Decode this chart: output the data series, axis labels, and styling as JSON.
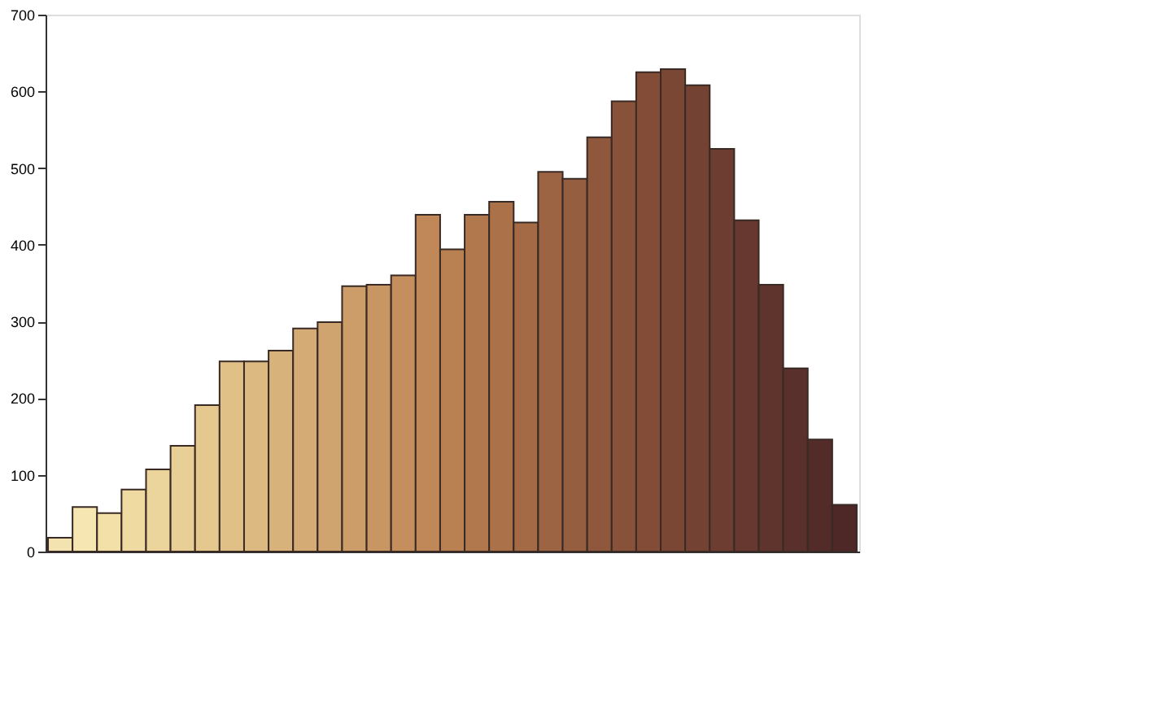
{
  "chart_data": {
    "type": "bar",
    "categories": [
      null,
      null,
      null,
      null,
      null,
      null,
      null,
      null,
      null,
      null,
      null,
      null,
      null,
      null,
      null,
      null,
      null,
      null,
      null,
      null,
      null,
      null,
      null,
      null,
      null,
      null,
      null,
      null,
      null,
      null,
      null,
      null,
      null
    ],
    "values": [
      18,
      58,
      50,
      81,
      107,
      138,
      191,
      248,
      248,
      262,
      291,
      299,
      346,
      348,
      360,
      439,
      394,
      439,
      456,
      429,
      495,
      486,
      540,
      587,
      625,
      629,
      608,
      525,
      432,
      348,
      239,
      146,
      61
    ],
    "colors": [
      "#f3e3b0",
      "#f5e6b2",
      "#f2e0a8",
      "#efdba2",
      "#ecd59c",
      "#e8cf95",
      "#e4c88e",
      "#e0c087",
      "#dcb981",
      "#d8b27b",
      "#d4ab75",
      "#d0a46f",
      "#cc9d69",
      "#c89663",
      "#c48f5d",
      "#c08858",
      "#b98052",
      "#b2784d",
      "#ab7149",
      "#a46a46",
      "#9d6443",
      "#965e40",
      "#8f583d",
      "#88523a",
      "#824c37",
      "#7b4735",
      "#744233",
      "#6d3d31",
      "#66382f",
      "#5f342d",
      "#59302b",
      "#532c29",
      "#4d2827"
    ],
    "ylim": [
      0,
      700
    ],
    "yticks": [
      0,
      100,
      200,
      300,
      400,
      500,
      600,
      700
    ],
    "grid": false,
    "tick_labels": "y"
  }
}
